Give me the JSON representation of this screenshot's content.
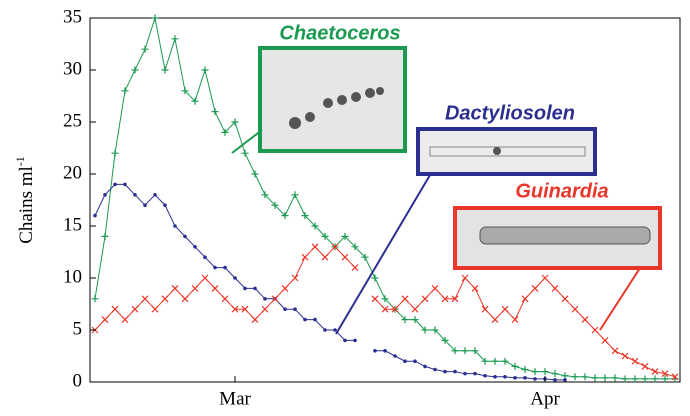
{
  "chart_data": {
    "type": "line",
    "y_label": "Chains ml",
    "y_label_exponent": "-1",
    "categories": [
      null,
      null,
      null,
      null,
      null,
      null,
      null,
      null,
      null,
      null,
      null,
      null,
      null,
      null,
      "Mar",
      null,
      null,
      null,
      null,
      null,
      null,
      null,
      null,
      null,
      null,
      null,
      null,
      null,
      null,
      null,
      null,
      null,
      null,
      null,
      null,
      null,
      null,
      null,
      null,
      null,
      null,
      null,
      null,
      null,
      null,
      "Apr",
      null,
      null,
      null,
      null,
      null,
      null,
      null,
      null,
      null,
      null,
      null,
      null,
      null
    ],
    "ylim": [
      0,
      35
    ],
    "yticks": [
      0,
      5,
      10,
      15,
      20,
      25,
      30,
      35
    ],
    "series": [
      {
        "name": "Chaetoceros",
        "color": "#1a9a50",
        "marker": "plus",
        "values": [
          8,
          14,
          22,
          28,
          30,
          32,
          35,
          30,
          33,
          28,
          27,
          30,
          26,
          24,
          25,
          22,
          20,
          18,
          17,
          16,
          18,
          16,
          15,
          14,
          13,
          14,
          13,
          12,
          10,
          8,
          7,
          6,
          6,
          5,
          5,
          4,
          3,
          3,
          3,
          2,
          2,
          2,
          1.5,
          1.2,
          1,
          1,
          0.8,
          0.6,
          0.5,
          0.5,
          0.4,
          0.4,
          0.4,
          0.3,
          0.3,
          0.3,
          0.3,
          0.3,
          0.3
        ]
      },
      {
        "name": "Dactyliosolen",
        "color": "#2b2f8f",
        "marker": "dot",
        "values": [
          16,
          18,
          19,
          19,
          18,
          17,
          18,
          17,
          15,
          14,
          13,
          12,
          11,
          11,
          10,
          9,
          9,
          8,
          8,
          7,
          7,
          6,
          6,
          5,
          5,
          4,
          4,
          null,
          3,
          3,
          2.5,
          2,
          2,
          1.5,
          1.2,
          1,
          1,
          0.8,
          0.8,
          0.6,
          0.5,
          0.5,
          0.4,
          0.4,
          0.3,
          0.3,
          0.2,
          0.2,
          null,
          null,
          null,
          null,
          null,
          null,
          null,
          null,
          null,
          null,
          null
        ]
      },
      {
        "name": "Guinardia",
        "color": "#e8372a",
        "marker": "cross",
        "values": [
          5,
          6,
          7,
          6,
          7,
          8,
          7,
          8,
          9,
          8,
          9,
          10,
          9,
          8,
          7,
          7,
          6,
          7,
          8,
          9,
          10,
          12,
          13,
          12,
          13,
          12,
          11,
          null,
          8,
          7,
          7,
          8,
          7,
          8,
          9,
          8,
          8,
          10,
          9,
          7,
          6,
          7,
          6,
          8,
          9,
          10,
          9,
          8,
          7,
          6,
          5,
          4,
          3,
          2.5,
          2,
          1.5,
          1,
          0.8,
          0.5
        ]
      }
    ]
  }
}
